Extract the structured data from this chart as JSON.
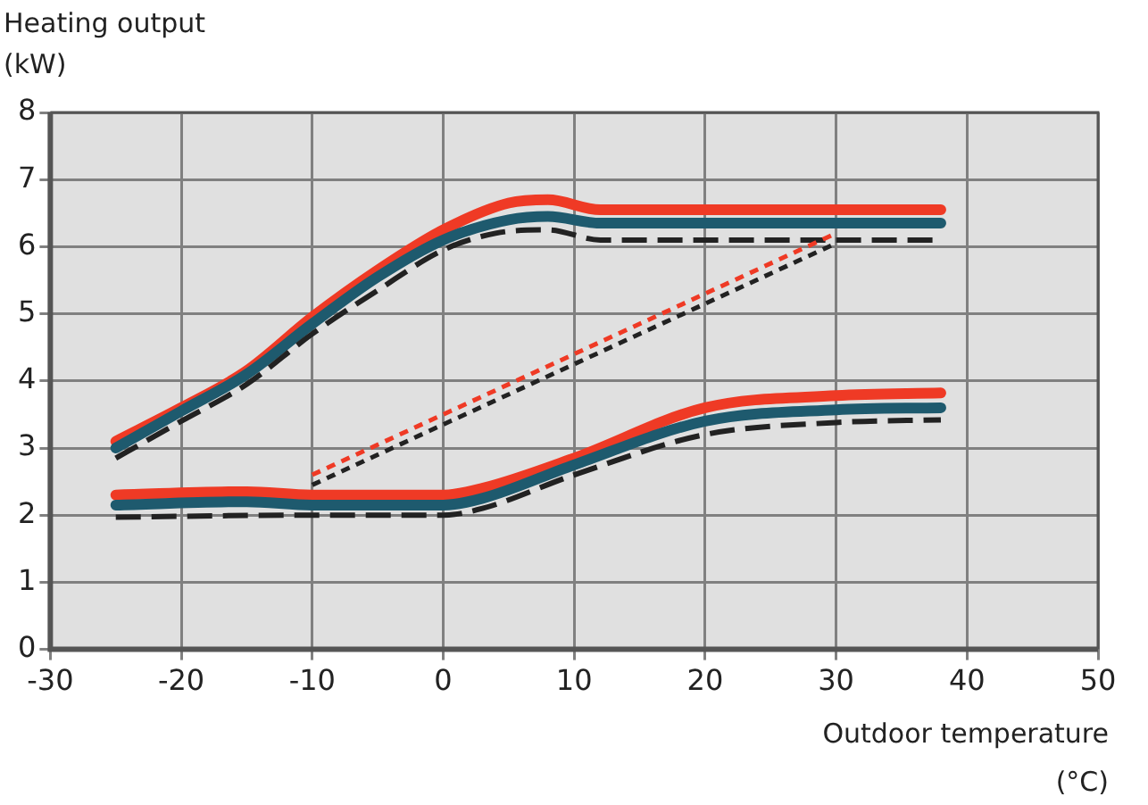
{
  "chart_data": {
    "type": "line",
    "xlabel": "Outdoor temperature (°C)",
    "ylabel": "Heating output (kW)",
    "xlim": [
      -30,
      50
    ],
    "xticks": [
      -30,
      -20,
      -10,
      0,
      10,
      20,
      30,
      40,
      50
    ],
    "ylim": [
      0,
      8
    ],
    "yticks": [
      0,
      1,
      2,
      3,
      4,
      5,
      6,
      7,
      8
    ],
    "grid": true,
    "marker": "none",
    "series": [
      {
        "color": "#ef3a25",
        "line_style": "solid",
        "x": [
          -25,
          -20,
          -15,
          -10,
          -5,
          0,
          5,
          8,
          12,
          20,
          30,
          38
        ],
        "values": [
          3.1,
          3.6,
          4.15,
          4.95,
          5.65,
          6.25,
          6.65,
          6.7,
          6.55,
          6.55,
          6.55,
          6.55
        ]
      },
      {
        "color": "#1e5a6e",
        "line_style": "solid",
        "x": [
          -25,
          -20,
          -15,
          -10,
          -5,
          0,
          5,
          8,
          12,
          20,
          30,
          38
        ],
        "values": [
          3.0,
          3.55,
          4.1,
          4.85,
          5.55,
          6.1,
          6.4,
          6.45,
          6.35,
          6.35,
          6.35,
          6.35
        ]
      },
      {
        "color": "#222222",
        "line_style": "dashed",
        "x": [
          -25,
          -20,
          -15,
          -10,
          -5,
          0,
          4,
          8,
          12,
          20,
          30,
          38
        ],
        "values": [
          2.85,
          3.4,
          3.95,
          4.7,
          5.35,
          5.95,
          6.2,
          6.25,
          6.1,
          6.1,
          6.1,
          6.1
        ]
      },
      {
        "color": "#ef3a25",
        "line_style": "solid",
        "x": [
          -25,
          -15,
          -10,
          0,
          3,
          10,
          20,
          30,
          38
        ],
        "values": [
          2.3,
          2.35,
          2.3,
          2.3,
          2.4,
          2.85,
          3.6,
          3.78,
          3.82
        ]
      },
      {
        "color": "#1e5a6e",
        "line_style": "solid",
        "x": [
          -25,
          -15,
          -10,
          0,
          3,
          10,
          20,
          30,
          38
        ],
        "values": [
          2.15,
          2.2,
          2.15,
          2.15,
          2.25,
          2.75,
          3.4,
          3.57,
          3.6
        ]
      },
      {
        "color": "#222222",
        "line_style": "dashed",
        "x": [
          -25,
          -10,
          0,
          3,
          10,
          20,
          30,
          38
        ],
        "values": [
          1.97,
          2.0,
          2.0,
          2.1,
          2.6,
          3.2,
          3.38,
          3.42
        ]
      },
      {
        "color": "#ef3a25",
        "line_style": "dotted",
        "x": [
          -10,
          30
        ],
        "values": [
          2.6,
          6.2
        ]
      },
      {
        "color": "#222222",
        "line_style": "dotted",
        "x": [
          -10,
          30
        ],
        "values": [
          2.45,
          6.05
        ]
      }
    ]
  }
}
